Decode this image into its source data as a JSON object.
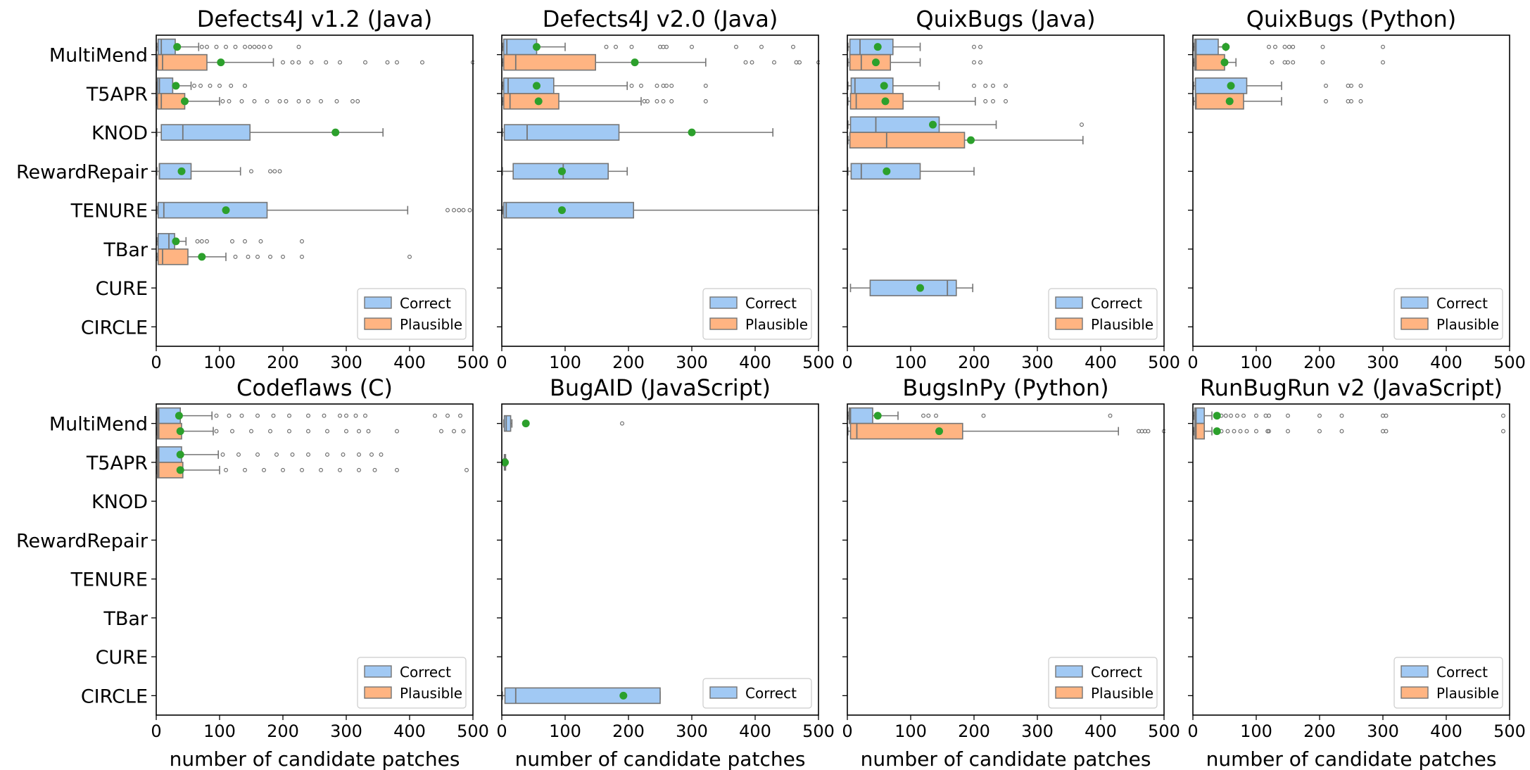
{
  "figure": {
    "xlabel": "number of candidate patches",
    "colors": {
      "correct": "#a1c9f4",
      "plausible": "#ffb482",
      "mean_marker": "#2ca02c",
      "edge": "#757575"
    }
  },
  "chart_data": [
    {
      "type": "boxplot",
      "title": "Defects4J v1.2 (Java)",
      "categories": [
        "MultiMend",
        "T5APR",
        "KNOD",
        "RewardRepair",
        "TENURE",
        "TBar",
        "CURE",
        "CIRCLE"
      ],
      "xlim": [
        0,
        500
      ],
      "xticks": [
        0,
        100,
        200,
        300,
        400,
        500
      ],
      "legend": [
        "Correct",
        "Plausible"
      ],
      "legend_loc": "lower right",
      "boxes": [
        {
          "category": "MultiMend",
          "kind": "Correct",
          "min": 1,
          "q1": 3,
          "med": 8,
          "q3": 30,
          "max": 67,
          "mean": 33,
          "outliers": [
            72,
            80,
            95,
            110,
            125,
            140,
            148,
            155,
            162,
            170,
            180,
            225
          ]
        },
        {
          "category": "MultiMend",
          "kind": "Plausible",
          "min": 1,
          "q1": 2,
          "med": 10,
          "q3": 80,
          "max": 185,
          "mean": 102,
          "outliers": [
            200,
            215,
            225,
            245,
            268,
            290,
            330,
            365,
            380,
            420,
            500
          ]
        },
        {
          "category": "T5APR",
          "kind": "Correct",
          "min": 1,
          "q1": 2,
          "med": 5,
          "q3": 26,
          "max": 55,
          "mean": 31,
          "outliers": [
            60,
            70,
            85,
            100,
            118,
            140
          ]
        },
        {
          "category": "T5APR",
          "kind": "Plausible",
          "min": 1,
          "q1": 2,
          "med": 8,
          "q3": 45,
          "max": 100,
          "mean": 45,
          "outliers": [
            105,
            115,
            135,
            155,
            175,
            195,
            205,
            225,
            240,
            260,
            285,
            310,
            318
          ]
        },
        {
          "category": "KNOD",
          "kind": "Correct",
          "min": 1,
          "q1": 8,
          "med": 42,
          "q3": 148,
          "max": 358,
          "mean": 283,
          "outliers": []
        },
        {
          "category": "RewardRepair",
          "kind": "Correct",
          "min": 1,
          "q1": 5,
          "med": 5,
          "q3": 55,
          "max": 133,
          "mean": 40,
          "outliers": [
            150,
            180,
            187,
            195
          ]
        },
        {
          "category": "TENURE",
          "kind": "Correct",
          "min": 1,
          "q1": 3,
          "med": 12,
          "q3": 175,
          "max": 397,
          "mean": 110,
          "outliers": [
            460,
            470,
            478,
            485,
            495
          ]
        },
        {
          "category": "TBar",
          "kind": "Correct",
          "min": 1,
          "q1": 3,
          "med": 20,
          "q3": 29,
          "max": 47,
          "mean": 31,
          "outliers": [
            65,
            72,
            80,
            120,
            140,
            165,
            230
          ]
        },
        {
          "category": "TBar",
          "kind": "Plausible",
          "min": 1,
          "q1": 3,
          "med": 10,
          "q3": 50,
          "max": 110,
          "mean": 72,
          "outliers": [
            125,
            145,
            160,
            180,
            200,
            230,
            400
          ]
        }
      ]
    },
    {
      "type": "boxplot",
      "title": "Defects4J v2.0 (Java)",
      "categories": [
        "MultiMend",
        "T5APR",
        "KNOD",
        "RewardRepair",
        "TENURE",
        "TBar",
        "CURE",
        "CIRCLE"
      ],
      "xlim": [
        0,
        500
      ],
      "xticks": [
        0,
        100,
        200,
        300,
        400,
        500
      ],
      "legend": [
        "Correct",
        "Plausible"
      ],
      "legend_loc": "lower right",
      "boxes": [
        {
          "category": "MultiMend",
          "kind": "Correct",
          "min": 1,
          "q1": 3,
          "med": 8,
          "q3": 55,
          "max": 100,
          "mean": 55,
          "outliers": [
            165,
            180,
            205,
            250,
            255,
            260,
            300,
            370,
            410,
            460
          ]
        },
        {
          "category": "MultiMend",
          "kind": "Plausible",
          "min": 1,
          "q1": 3,
          "med": 22,
          "q3": 148,
          "max": 322,
          "mean": 210,
          "outliers": [
            385,
            395,
            430,
            465,
            470,
            500
          ]
        },
        {
          "category": "T5APR",
          "kind": "Correct",
          "min": 1,
          "q1": 3,
          "med": 10,
          "q3": 82,
          "max": 198,
          "mean": 55,
          "outliers": [
            205,
            220,
            245,
            255,
            260,
            268,
            322
          ]
        },
        {
          "category": "T5APR",
          "kind": "Plausible",
          "min": 1,
          "q1": 3,
          "med": 13,
          "q3": 90,
          "max": 220,
          "mean": 58,
          "outliers": [
            225,
            230,
            245,
            255,
            268,
            322
          ]
        },
        {
          "category": "KNOD",
          "kind": "Correct",
          "min": 1,
          "q1": 4,
          "med": 40,
          "q3": 185,
          "max": 428,
          "mean": 300,
          "outliers": []
        },
        {
          "category": "RewardRepair",
          "kind": "Correct",
          "min": 1,
          "q1": 18,
          "med": 97,
          "q3": 168,
          "max": 198,
          "mean": 95,
          "outliers": []
        },
        {
          "category": "TENURE",
          "kind": "Correct",
          "min": 1,
          "q1": 3,
          "med": 7,
          "q3": 208,
          "max": 500,
          "mean": 95,
          "outliers": []
        }
      ]
    },
    {
      "type": "boxplot",
      "title": "QuixBugs (Java)",
      "categories": [
        "MultiMend",
        "T5APR",
        "KNOD",
        "RewardRepair",
        "TENURE",
        "TBar",
        "CURE",
        "CIRCLE"
      ],
      "xlim": [
        0,
        500
      ],
      "xticks": [
        0,
        100,
        200,
        300,
        400,
        500
      ],
      "legend": [
        "Correct",
        "Plausible"
      ],
      "legend_loc": "lower right",
      "boxes": [
        {
          "category": "MultiMend",
          "kind": "Correct",
          "min": 1,
          "q1": 4,
          "med": 20,
          "q3": 72,
          "max": 115,
          "mean": 48,
          "outliers": [
            200,
            210
          ]
        },
        {
          "category": "MultiMend",
          "kind": "Plausible",
          "min": 1,
          "q1": 4,
          "med": 22,
          "q3": 68,
          "max": 115,
          "mean": 45,
          "outliers": [
            200,
            210
          ]
        },
        {
          "category": "T5APR",
          "kind": "Correct",
          "min": 1,
          "q1": 6,
          "med": 12,
          "q3": 72,
          "max": 145,
          "mean": 58,
          "outliers": [
            200,
            218,
            230,
            250
          ]
        },
        {
          "category": "T5APR",
          "kind": "Plausible",
          "min": 1,
          "q1": 5,
          "med": 14,
          "q3": 88,
          "max": 202,
          "mean": 60,
          "outliers": [
            218,
            230,
            250
          ]
        },
        {
          "category": "KNOD",
          "kind": "Correct",
          "min": 1,
          "q1": 5,
          "med": 45,
          "q3": 145,
          "max": 235,
          "mean": 135,
          "outliers": [
            370
          ]
        },
        {
          "category": "KNOD",
          "kind": "Plausible",
          "min": 1,
          "q1": 4,
          "med": 62,
          "q3": 185,
          "max": 372,
          "mean": 195,
          "outliers": []
        },
        {
          "category": "RewardRepair",
          "kind": "Correct",
          "min": 1,
          "q1": 6,
          "med": 22,
          "q3": 115,
          "max": 200,
          "mean": 62,
          "outliers": []
        },
        {
          "category": "CURE",
          "kind": "Correct",
          "min": 5,
          "q1": 36,
          "med": 158,
          "q3": 172,
          "max": 198,
          "mean": 115,
          "outliers": []
        }
      ]
    },
    {
      "type": "boxplot",
      "title": "QuixBugs (Python)",
      "categories": [
        "MultiMend",
        "T5APR",
        "KNOD",
        "RewardRepair",
        "TENURE",
        "TBar",
        "CURE",
        "CIRCLE"
      ],
      "xlim": [
        0,
        500
      ],
      "xticks": [
        0,
        100,
        200,
        300,
        400,
        500
      ],
      "legend": [
        "Correct",
        "Plausible"
      ],
      "legend_loc": "lower right",
      "boxes": [
        {
          "category": "MultiMend",
          "kind": "Correct",
          "min": 1,
          "q1": 3,
          "med": 5,
          "q3": 40,
          "max": 52,
          "mean": 52,
          "outliers": [
            120,
            130,
            145,
            152,
            158,
            205,
            300
          ]
        },
        {
          "category": "MultiMend",
          "kind": "Plausible",
          "min": 1,
          "q1": 3,
          "med": 5,
          "q3": 50,
          "max": 68,
          "mean": 50,
          "outliers": [
            125,
            145,
            150,
            158,
            205,
            300
          ]
        },
        {
          "category": "T5APR",
          "kind": "Correct",
          "min": 1,
          "q1": 4,
          "med": 4,
          "q3": 85,
          "max": 140,
          "mean": 60,
          "outliers": [
            210,
            245,
            250,
            265
          ]
        },
        {
          "category": "T5APR",
          "kind": "Plausible",
          "min": 1,
          "q1": 4,
          "med": 5,
          "q3": 80,
          "max": 140,
          "mean": 58,
          "outliers": [
            210,
            245,
            250,
            265
          ]
        }
      ]
    },
    {
      "type": "boxplot",
      "title": "Codeflaws (C)",
      "categories": [
        "MultiMend",
        "T5APR",
        "KNOD",
        "RewardRepair",
        "TENURE",
        "TBar",
        "CURE",
        "CIRCLE"
      ],
      "xlim": [
        0,
        500
      ],
      "xticks": [
        0,
        100,
        200,
        300,
        400,
        500
      ],
      "legend": [
        "Correct",
        "Plausible"
      ],
      "legend_loc": "lower right",
      "boxes": [
        {
          "category": "MultiMend",
          "kind": "Correct",
          "min": 1,
          "q1": 2,
          "med": 4,
          "q3": 38,
          "max": 88,
          "mean": 36,
          "outliers": [
            95,
            115,
            135,
            160,
            185,
            210,
            240,
            265,
            290,
            300,
            315,
            330,
            440,
            460,
            480
          ]
        },
        {
          "category": "MultiMend",
          "kind": "Plausible",
          "min": 1,
          "q1": 2,
          "med": 4,
          "q3": 40,
          "max": 90,
          "mean": 38,
          "outliers": [
            95,
            120,
            150,
            180,
            210,
            240,
            270,
            300,
            320,
            335,
            380,
            450,
            470,
            485
          ]
        },
        {
          "category": "T5APR",
          "kind": "Correct",
          "min": 1,
          "q1": 2,
          "med": 4,
          "q3": 40,
          "max": 98,
          "mean": 38,
          "outliers": [
            105,
            130,
            160,
            190,
            215,
            240,
            270,
            295,
            320,
            340,
            355
          ]
        },
        {
          "category": "T5APR",
          "kind": "Plausible",
          "min": 1,
          "q1": 2,
          "med": 4,
          "q3": 42,
          "max": 100,
          "mean": 38,
          "outliers": [
            110,
            140,
            170,
            200,
            230,
            260,
            290,
            320,
            345,
            380,
            490
          ]
        }
      ]
    },
    {
      "type": "boxplot",
      "title": "BugAID (JavaScript)",
      "categories": [
        "MultiMend",
        "T5APR",
        "KNOD",
        "RewardRepair",
        "TENURE",
        "TBar",
        "CURE",
        "CIRCLE"
      ],
      "xlim": [
        0,
        500
      ],
      "xticks": [
        0,
        100,
        200,
        300,
        400,
        500
      ],
      "legend": [
        "Correct"
      ],
      "legend_loc": "lower right",
      "boxes": [
        {
          "category": "MultiMend",
          "kind": "Correct",
          "min": 3,
          "q1": 4,
          "med": 7,
          "q3": 14,
          "max": 16,
          "mean": 38,
          "outliers": [
            190
          ]
        },
        {
          "category": "T5APR",
          "kind": "Correct",
          "min": 3,
          "q1": 4,
          "med": 5,
          "q3": 6,
          "max": 7,
          "mean": 5,
          "outliers": []
        },
        {
          "category": "CIRCLE",
          "kind": "Correct",
          "min": 1,
          "q1": 5,
          "med": 22,
          "q3": 250,
          "max": 250,
          "mean": 192,
          "outliers": []
        }
      ]
    },
    {
      "type": "boxplot",
      "title": "BugsInPy (Python)",
      "categories": [
        "MultiMend",
        "T5APR",
        "KNOD",
        "RewardRepair",
        "TENURE",
        "TBar",
        "CURE",
        "CIRCLE"
      ],
      "xlim": [
        0,
        500
      ],
      "xticks": [
        0,
        100,
        200,
        300,
        400,
        500
      ],
      "legend": [
        "Correct",
        "Plausible"
      ],
      "legend_loc": "lower right",
      "boxes": [
        {
          "category": "MultiMend",
          "kind": "Correct",
          "min": 1,
          "q1": 3,
          "med": 5,
          "q3": 40,
          "max": 80,
          "mean": 48,
          "outliers": [
            120,
            128,
            140,
            215,
            415
          ]
        },
        {
          "category": "MultiMend",
          "kind": "Plausible",
          "min": 1,
          "q1": 5,
          "med": 15,
          "q3": 182,
          "max": 428,
          "mean": 145,
          "outliers": [
            460,
            465,
            470,
            475,
            500
          ]
        }
      ]
    },
    {
      "type": "boxplot",
      "title": "RunBugRun v2 (JavaScript)",
      "categories": [
        "MultiMend",
        "T5APR",
        "KNOD",
        "RewardRepair",
        "TENURE",
        "TBar",
        "CURE",
        "CIRCLE"
      ],
      "xlim": [
        0,
        500
      ],
      "xticks": [
        0,
        100,
        200,
        300,
        400,
        500
      ],
      "legend": [
        "Correct",
        "Plausible"
      ],
      "legend_loc": "lower right",
      "boxes": [
        {
          "category": "MultiMend",
          "kind": "Correct",
          "min": 1,
          "q1": 3,
          "med": 5,
          "q3": 18,
          "max": 30,
          "mean": 38,
          "outliers": [
            45,
            52,
            60,
            70,
            80,
            100,
            115,
            120,
            150,
            200,
            235,
            300,
            305,
            490
          ]
        },
        {
          "category": "MultiMend",
          "kind": "Plausible",
          "min": 1,
          "q1": 3,
          "med": 5,
          "q3": 18,
          "max": 30,
          "mean": 38,
          "outliers": [
            45,
            55,
            65,
            75,
            85,
            100,
            118,
            120,
            150,
            200,
            235,
            300,
            305,
            490
          ]
        }
      ]
    }
  ]
}
